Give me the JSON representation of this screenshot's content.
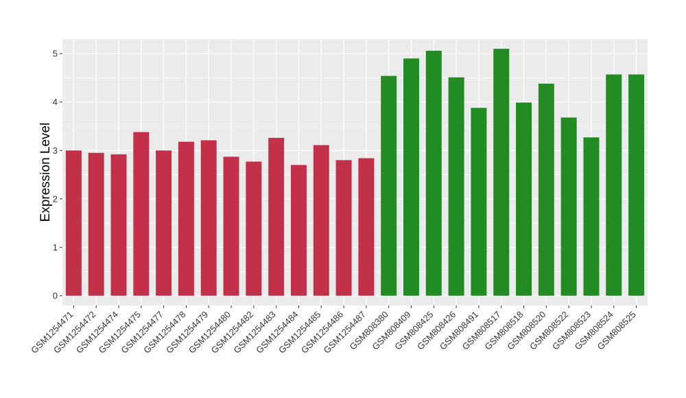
{
  "chart_data": {
    "type": "bar",
    "title": "",
    "xlabel": "",
    "ylabel": "Expression Level",
    "ylim": [
      -0.2,
      5.3
    ],
    "yticks": [
      0,
      1,
      2,
      3,
      4,
      5
    ],
    "grid": true,
    "background": "#ebebeb",
    "gridline_color": "#ffffff",
    "group_colors": [
      "#c3304a",
      "#228b22"
    ],
    "categories": [
      "GSM1254471",
      "GSM1254472",
      "GSM1254474",
      "GSM1254475",
      "GSM1254477",
      "GSM1254478",
      "GSM1254479",
      "GSM1254480",
      "GSM1254482",
      "GSM1254483",
      "GSM1254484",
      "GSM1254485",
      "GSM1254486",
      "GSM1254487",
      "GSM808380",
      "GSM808409",
      "GSM808425",
      "GSM808426",
      "GSM808491",
      "GSM808517",
      "GSM808518",
      "GSM808520",
      "GSM808522",
      "GSM808523",
      "GSM808524",
      "GSM808525"
    ],
    "values": [
      3.0,
      2.95,
      2.92,
      3.38,
      3.0,
      3.18,
      3.21,
      2.87,
      2.77,
      3.26,
      2.7,
      3.11,
      2.8,
      2.84,
      4.54,
      4.9,
      5.06,
      4.51,
      3.88,
      5.1,
      3.99,
      4.38,
      3.68,
      3.27,
      4.57,
      4.57
    ],
    "groups": [
      0,
      0,
      0,
      0,
      0,
      0,
      0,
      0,
      0,
      0,
      0,
      0,
      0,
      0,
      1,
      1,
      1,
      1,
      1,
      1,
      1,
      1,
      1,
      1,
      1,
      1
    ]
  }
}
